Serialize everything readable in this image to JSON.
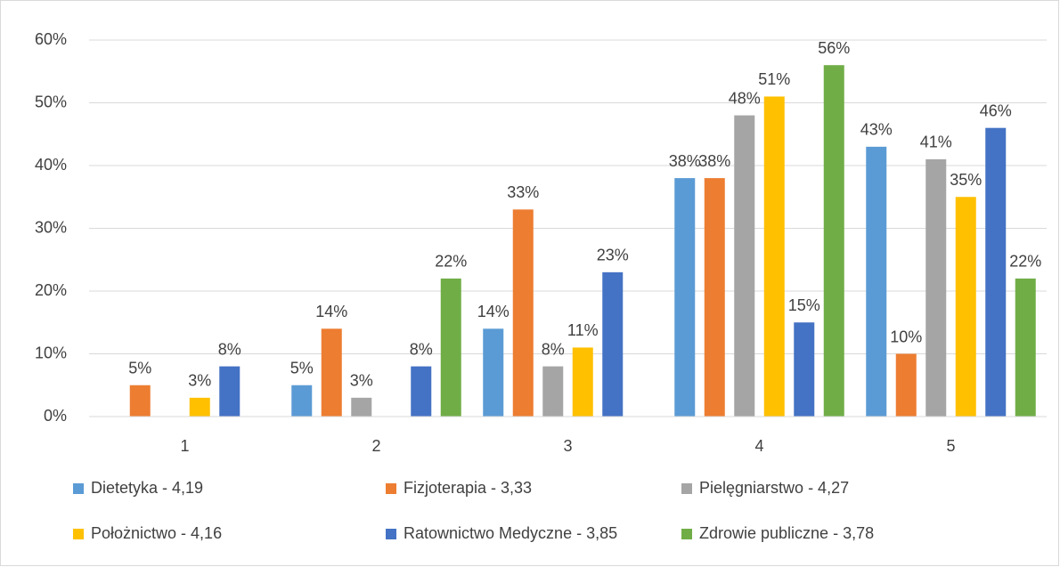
{
  "chart_data": {
    "type": "bar",
    "categories": [
      "1",
      "2",
      "3",
      "4",
      "5"
    ],
    "series": [
      {
        "name": "Dietetyka - 4,19",
        "color": "#5b9bd5",
        "values": [
          null,
          5,
          14,
          38,
          43
        ],
        "value_labels": [
          null,
          "5%",
          "14%",
          "38%",
          "43%"
        ]
      },
      {
        "name": "Fizjoterapia - 3,33",
        "color": "#ed7d31",
        "values": [
          5,
          14,
          33,
          38,
          10
        ],
        "value_labels": [
          "5%",
          "14%",
          "33%",
          "38%",
          "10%"
        ]
      },
      {
        "name": "Pielęgniarstwo - 4,27",
        "color": "#a5a5a5",
        "values": [
          null,
          3,
          8,
          48,
          41
        ],
        "value_labels": [
          null,
          "3%",
          "8%",
          "48%",
          "41%"
        ]
      },
      {
        "name": "Położnictwo - 4,16",
        "color": "#ffc000",
        "values": [
          3,
          null,
          11,
          51,
          35
        ],
        "value_labels": [
          "3%",
          null,
          "11%",
          "51%",
          "35%"
        ]
      },
      {
        "name": "Ratownictwo Medyczne - 3,85",
        "color": "#4472c4",
        "values": [
          8,
          8,
          23,
          15,
          46
        ],
        "value_labels": [
          "8%",
          "8%",
          "23%",
          "15%",
          "46%"
        ]
      },
      {
        "name": "Zdrowie publiczne - 3,78",
        "color": "#70ad47",
        "values": [
          null,
          22,
          null,
          56,
          22
        ],
        "value_labels": [
          null,
          "22%",
          null,
          "56%",
          "22%"
        ]
      }
    ],
    "ylim": [
      0,
      60
    ],
    "yticks": [
      {
        "value": 0,
        "label": "0%"
      },
      {
        "value": 10,
        "label": "10%"
      },
      {
        "value": 20,
        "label": "20%"
      },
      {
        "value": 30,
        "label": "30%"
      },
      {
        "value": 40,
        "label": "40%"
      },
      {
        "value": 50,
        "label": "50%"
      },
      {
        "value": 60,
        "label": "60%"
      }
    ],
    "grid": true,
    "legend": "bottom"
  }
}
